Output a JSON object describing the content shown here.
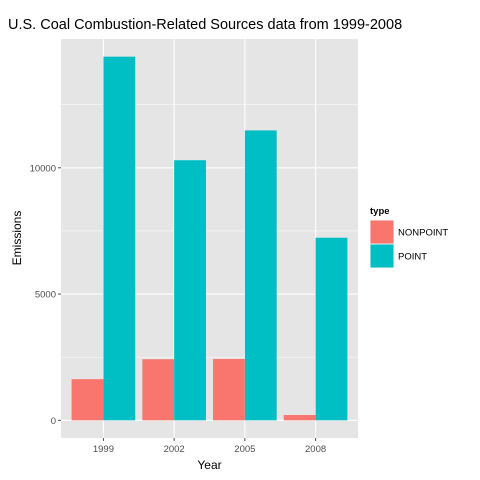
{
  "chart_data": {
    "type": "bar",
    "title": "U.S. Coal Combustion-Related Sources data from 1999-2008",
    "xlabel": "Year",
    "ylabel": "Emissions",
    "categories": [
      "1999",
      "2002",
      "2005",
      "2008"
    ],
    "series": [
      {
        "name": "NONPOINT",
        "color": "#F8766D",
        "values": [
          1630,
          2420,
          2430,
          210
        ]
      },
      {
        "name": "POINT",
        "color": "#00BFC4",
        "values": [
          14400,
          10300,
          11480,
          7230
        ]
      }
    ],
    "yticks": [
      0,
      5000,
      10000
    ],
    "ytick_labels": [
      "0",
      "5000",
      "10000"
    ],
    "ylim": [
      -700,
      15100
    ],
    "grid": true,
    "legend": {
      "title": "type",
      "position": "right"
    },
    "colors": {
      "panel_background": "#E5E5E5",
      "grid_line": "#FFFFFF"
    }
  }
}
